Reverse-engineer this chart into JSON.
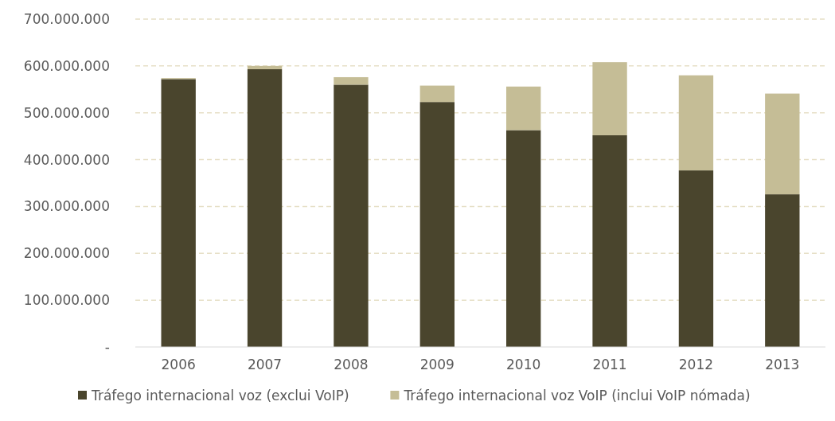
{
  "chart_data": {
    "type": "bar",
    "stacked": true,
    "categories": [
      "2006",
      "2007",
      "2008",
      "2009",
      "2010",
      "2011",
      "2012",
      "2013"
    ],
    "series": [
      {
        "name": "Tráfego internacional voz (exclui VoIP)",
        "color": "#4a452d",
        "values": [
          572000000,
          593000000,
          560000000,
          523000000,
          463000000,
          452000000,
          377000000,
          326000000
        ]
      },
      {
        "name": "Tráfego internacional voz VoIP (inclui VoIP nómada)",
        "color": "#c5bd96",
        "values": [
          2000000,
          7000000,
          16000000,
          35000000,
          93000000,
          156000000,
          203000000,
          215000000
        ]
      }
    ],
    "ylim": [
      0,
      700000000
    ],
    "yticks": [
      {
        "value": 0,
        "label": "-"
      },
      {
        "value": 100000000,
        "label": "100.000.000"
      },
      {
        "value": 200000000,
        "label": "200.000.000"
      },
      {
        "value": 300000000,
        "label": "300.000.000"
      },
      {
        "value": 400000000,
        "label": "400.000.000"
      },
      {
        "value": 500000000,
        "label": "500.000.000"
      },
      {
        "value": 600000000,
        "label": "600.000.000"
      },
      {
        "value": 700000000,
        "label": "700.000.000"
      }
    ],
    "grid": "y",
    "legend": "bottom"
  }
}
